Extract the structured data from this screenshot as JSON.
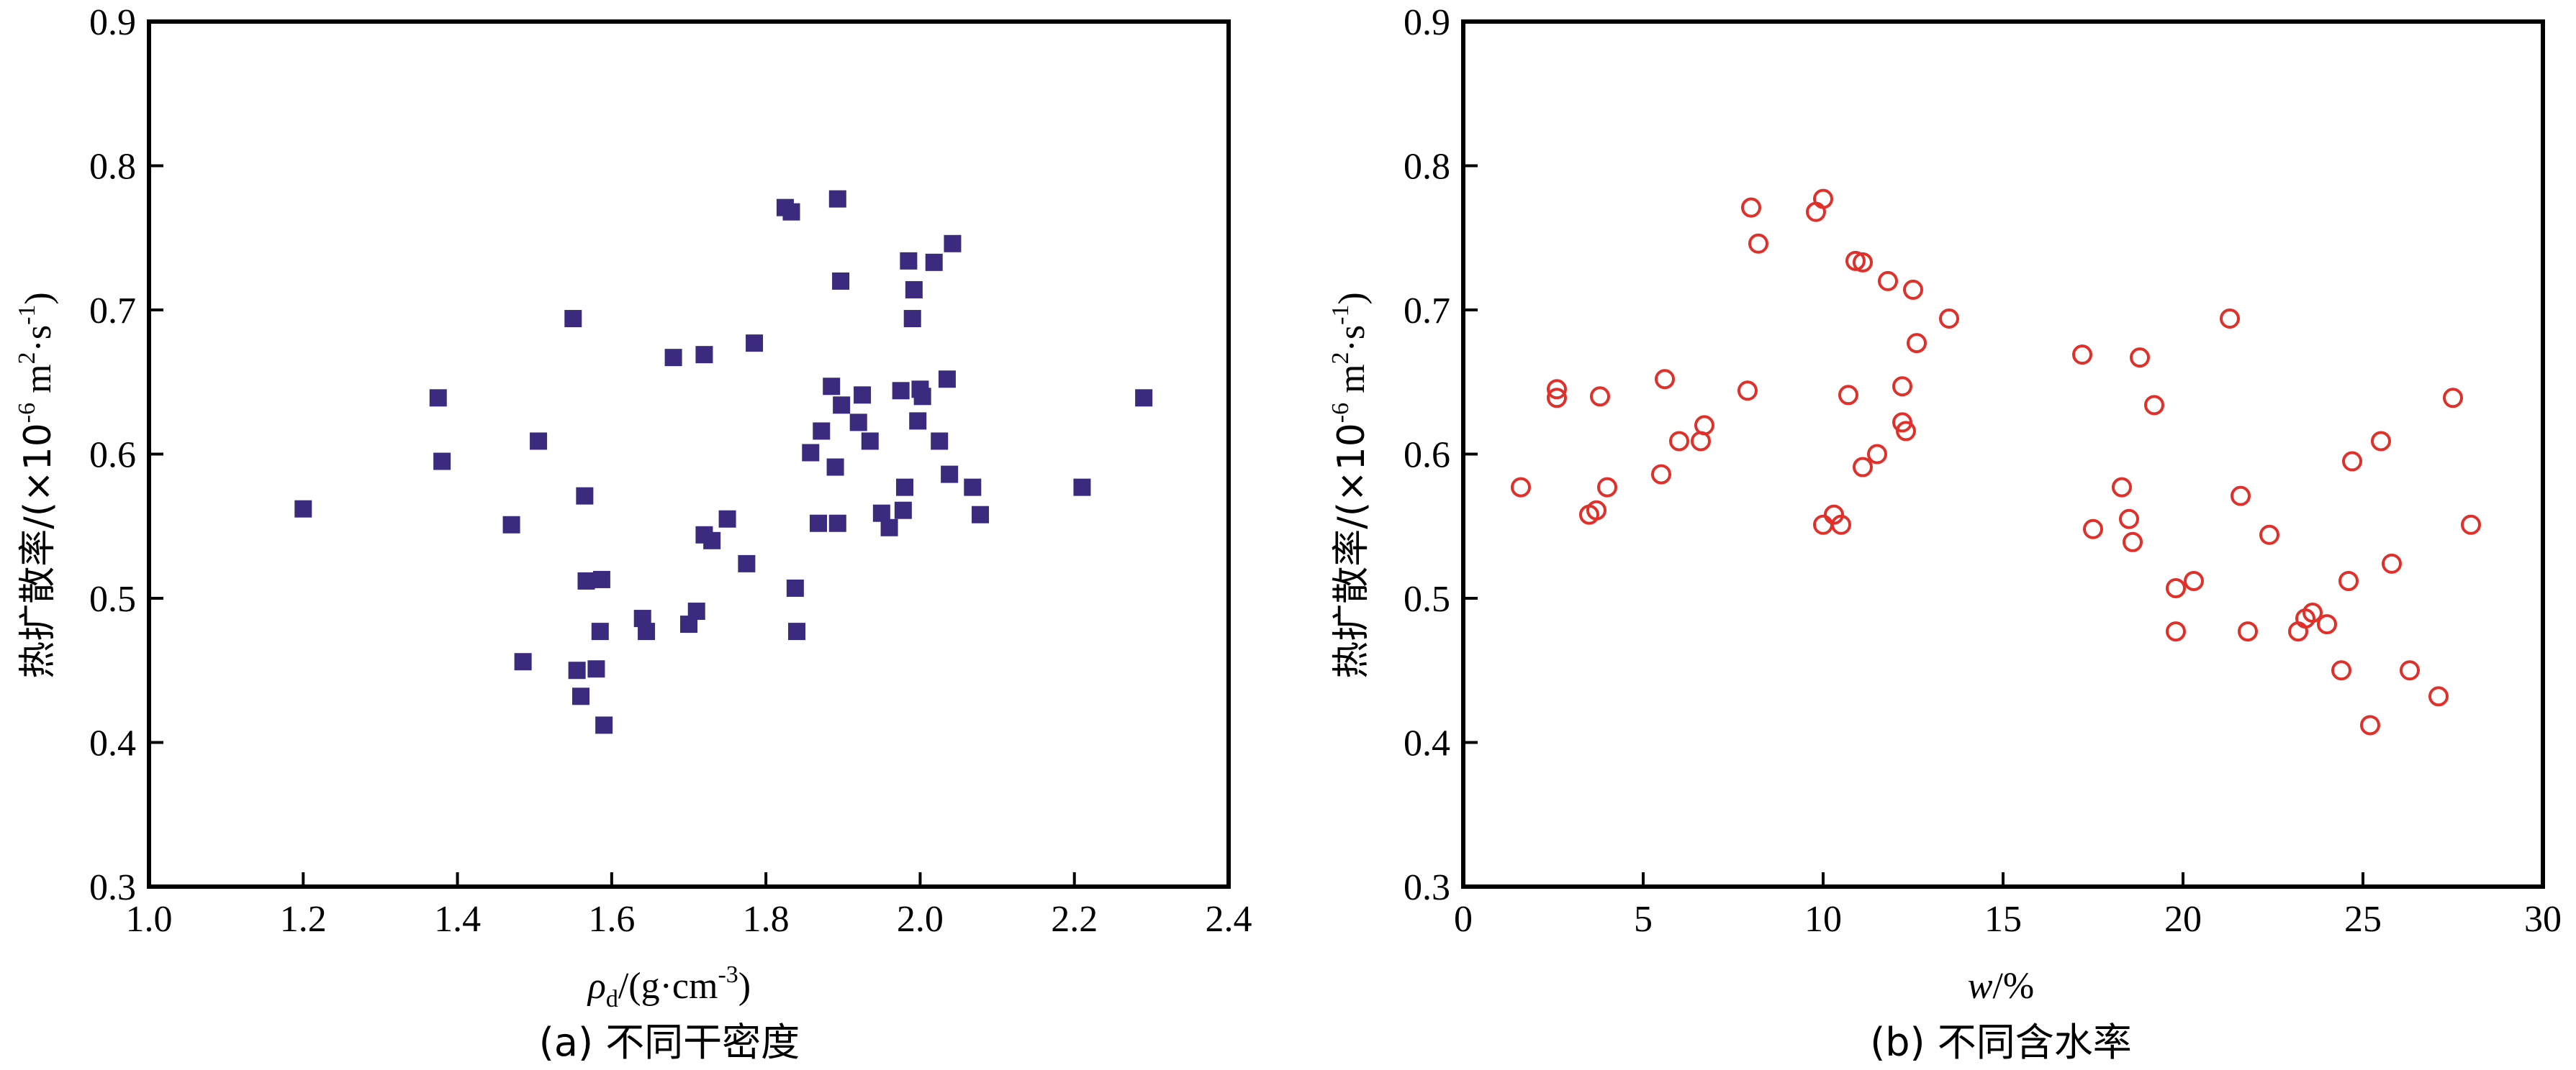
{
  "chart_data": [
    {
      "type": "scatter",
      "panel": "a",
      "caption": "(a) 不同干密度",
      "xlabel_main": "ρ",
      "xlabel_sub": "d",
      "xlabel_rest": "/(g·cm",
      "xlabel_exp": "-3",
      "xlabel_end": ")",
      "ylabel_main": "热扩散率/(×10",
      "ylabel_exp1": "-6",
      "ylabel_mid": " m",
      "ylabel_exp2": "2",
      "ylabel_mid2": "·s",
      "ylabel_exp3": "-1",
      "ylabel_end": ")",
      "xlim": [
        1.0,
        2.4
      ],
      "ylim": [
        0.3,
        0.9
      ],
      "xticks": [
        1.0,
        1.2,
        1.4,
        1.6,
        1.8,
        2.0,
        2.2,
        2.4
      ],
      "xtick_labels": [
        "1.0",
        "1.2",
        "1.4",
        "1.6",
        "1.8",
        "2.0",
        "2.2",
        "2.4"
      ],
      "yticks": [
        0.3,
        0.4,
        0.5,
        0.6,
        0.7,
        0.8,
        0.9
      ],
      "ytick_labels": [
        "0.3",
        "0.4",
        "0.5",
        "0.6",
        "0.7",
        "0.8",
        "0.9"
      ],
      "marker": "filled-square",
      "color": "#3b2a7e",
      "grid": false,
      "points": [
        [
          1.2,
          0.562
        ],
        [
          1.375,
          0.639
        ],
        [
          1.38,
          0.595
        ],
        [
          1.47,
          0.551
        ],
        [
          1.485,
          0.456
        ],
        [
          1.505,
          0.609
        ],
        [
          1.55,
          0.694
        ],
        [
          1.555,
          0.45
        ],
        [
          1.56,
          0.432
        ],
        [
          1.565,
          0.571
        ],
        [
          1.567,
          0.512
        ],
        [
          1.58,
          0.451
        ],
        [
          1.585,
          0.477
        ],
        [
          1.587,
          0.513
        ],
        [
          1.59,
          0.412
        ],
        [
          1.64,
          0.486
        ],
        [
          1.645,
          0.477
        ],
        [
          1.68,
          0.667
        ],
        [
          1.7,
          0.482
        ],
        [
          1.71,
          0.491
        ],
        [
          1.72,
          0.669
        ],
        [
          1.72,
          0.544
        ],
        [
          1.73,
          0.54
        ],
        [
          1.75,
          0.555
        ],
        [
          1.775,
          0.524
        ],
        [
          1.785,
          0.677
        ],
        [
          1.825,
          0.771
        ],
        [
          1.833,
          0.768
        ],
        [
          1.838,
          0.507
        ],
        [
          1.84,
          0.477
        ],
        [
          1.858,
          0.601
        ],
        [
          1.868,
          0.552
        ],
        [
          1.872,
          0.616
        ],
        [
          1.885,
          0.647
        ],
        [
          1.89,
          0.591
        ],
        [
          1.893,
          0.777
        ],
        [
          1.893,
          0.552
        ],
        [
          1.897,
          0.72
        ],
        [
          1.898,
          0.634
        ],
        [
          1.92,
          0.622
        ],
        [
          1.925,
          0.641
        ],
        [
          1.935,
          0.609
        ],
        [
          1.95,
          0.559
        ],
        [
          1.96,
          0.549
        ],
        [
          1.975,
          0.644
        ],
        [
          1.978,
          0.561
        ],
        [
          1.98,
          0.577
        ],
        [
          1.985,
          0.734
        ],
        [
          1.99,
          0.694
        ],
        [
          1.992,
          0.714
        ],
        [
          1.997,
          0.623
        ],
        [
          2.0,
          0.645
        ],
        [
          2.003,
          0.64
        ],
        [
          2.018,
          0.733
        ],
        [
          2.025,
          0.609
        ],
        [
          2.035,
          0.652
        ],
        [
          2.038,
          0.586
        ],
        [
          2.042,
          0.746
        ],
        [
          2.068,
          0.577
        ],
        [
          2.078,
          0.558
        ],
        [
          2.21,
          0.577
        ],
        [
          2.29,
          0.639
        ]
      ]
    },
    {
      "type": "scatter",
      "panel": "b",
      "caption": "(b) 不同含水率",
      "xlabel_main": "w",
      "xlabel_rest": "/%",
      "ylabel_main": "热扩散率/(×10",
      "ylabel_exp1": "-6",
      "ylabel_mid": " m",
      "ylabel_exp2": "2",
      "ylabel_mid2": "·s",
      "ylabel_exp3": "-1",
      "ylabel_end": ")",
      "xlim": [
        0,
        30
      ],
      "ylim": [
        0.3,
        0.9
      ],
      "xticks": [
        0,
        5,
        10,
        15,
        20,
        25,
        30
      ],
      "xtick_labels": [
        "0",
        "5",
        "10",
        "15",
        "20",
        "25",
        "30"
      ],
      "yticks": [
        0.3,
        0.4,
        0.5,
        0.6,
        0.7,
        0.8,
        0.9
      ],
      "ytick_labels": [
        "0.3",
        "0.4",
        "0.5",
        "0.6",
        "0.7",
        "0.8",
        "0.9"
      ],
      "marker": "open-circle",
      "color": "#e0302a",
      "grid": false,
      "points": [
        [
          1.6,
          0.577
        ],
        [
          2.6,
          0.645
        ],
        [
          2.6,
          0.639
        ],
        [
          3.5,
          0.558
        ],
        [
          3.7,
          0.561
        ],
        [
          3.8,
          0.64
        ],
        [
          4.0,
          0.577
        ],
        [
          5.5,
          0.586
        ],
        [
          5.6,
          0.652
        ],
        [
          6.0,
          0.609
        ],
        [
          6.6,
          0.609
        ],
        [
          6.7,
          0.62
        ],
        [
          7.9,
          0.644
        ],
        [
          8.0,
          0.771
        ],
        [
          8.2,
          0.746
        ],
        [
          9.8,
          0.768
        ],
        [
          10.0,
          0.777
        ],
        [
          10.0,
          0.551
        ],
        [
          10.3,
          0.558
        ],
        [
          10.5,
          0.551
        ],
        [
          10.7,
          0.641
        ],
        [
          10.9,
          0.734
        ],
        [
          11.1,
          0.733
        ],
        [
          11.1,
          0.591
        ],
        [
          11.5,
          0.6
        ],
        [
          11.8,
          0.72
        ],
        [
          12.2,
          0.647
        ],
        [
          12.2,
          0.622
        ],
        [
          12.3,
          0.616
        ],
        [
          12.5,
          0.714
        ],
        [
          12.6,
          0.677
        ],
        [
          13.5,
          0.694
        ],
        [
          17.2,
          0.669
        ],
        [
          17.5,
          0.548
        ],
        [
          18.3,
          0.577
        ],
        [
          18.5,
          0.555
        ],
        [
          18.6,
          0.539
        ],
        [
          18.8,
          0.667
        ],
        [
          19.2,
          0.634
        ],
        [
          19.8,
          0.507
        ],
        [
          19.8,
          0.477
        ],
        [
          20.3,
          0.512
        ],
        [
          21.3,
          0.694
        ],
        [
          21.6,
          0.571
        ],
        [
          21.8,
          0.477
        ],
        [
          22.4,
          0.544
        ],
        [
          23.2,
          0.477
        ],
        [
          23.4,
          0.486
        ],
        [
          23.6,
          0.49
        ],
        [
          24.0,
          0.482
        ],
        [
          24.4,
          0.45
        ],
        [
          24.6,
          0.512
        ],
        [
          24.7,
          0.595
        ],
        [
          25.2,
          0.412
        ],
        [
          25.5,
          0.609
        ],
        [
          25.8,
          0.524
        ],
        [
          26.3,
          0.45
        ],
        [
          27.1,
          0.432
        ],
        [
          27.5,
          0.639
        ],
        [
          28.0,
          0.551
        ]
      ]
    }
  ]
}
